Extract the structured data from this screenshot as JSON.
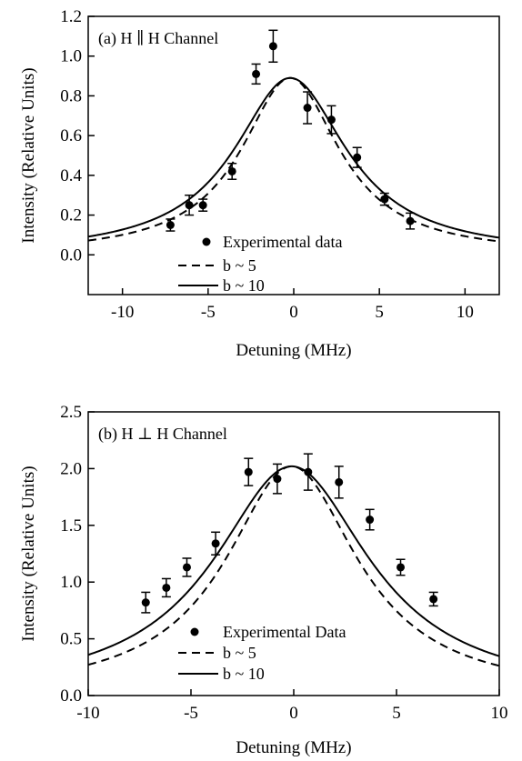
{
  "chart_data": [
    {
      "type": "line",
      "panel_label": "(a) H ∥ H Channel",
      "xlabel": "Detuning (MHz)",
      "ylabel": "Intensity (Relative Units)",
      "xlim": [
        -12,
        12
      ],
      "ylim": [
        -0.2,
        1.2
      ],
      "xticks": [
        -10,
        -5,
        0,
        5,
        10
      ],
      "xtick_labels": [
        "-10",
        "-5",
        "0",
        "5",
        "10"
      ],
      "yticks": [
        0.0,
        0.2,
        0.4,
        0.6,
        0.8,
        1.0,
        1.2
      ],
      "ytick_labels": [
        "0.0",
        "0.2",
        "0.4",
        "0.6",
        "0.8",
        "1.0",
        "1.2"
      ],
      "grid": false,
      "legend_position": "lower-center",
      "series": [
        {
          "name": "Experimental data",
          "kind": "scatter-errorbar",
          "x": [
            -7.2,
            -6.1,
            -5.3,
            -3.6,
            -2.2,
            -1.2,
            0.8,
            2.2,
            3.7,
            5.3,
            6.8
          ],
          "y": [
            0.15,
            0.25,
            0.25,
            0.42,
            0.91,
            1.05,
            0.74,
            0.68,
            0.49,
            0.28,
            0.17
          ],
          "err": [
            0.03,
            0.05,
            0.03,
            0.04,
            0.05,
            0.08,
            0.08,
            0.07,
            0.05,
            0.03,
            0.04
          ]
        },
        {
          "name": "b ~ 5",
          "kind": "lorentzian",
          "style": "dashed",
          "amplitude": 0.89,
          "center": -0.2,
          "hwhm": 3.5
        },
        {
          "name": "b ~ 10",
          "kind": "lorentzian",
          "style": "solid",
          "amplitude": 0.89,
          "center": -0.2,
          "hwhm": 4.0
        }
      ]
    },
    {
      "type": "line",
      "panel_label": "(b) H ⊥ H Channel",
      "xlabel": "Detuning (MHz)",
      "ylabel": "Intensity (Relative Units)",
      "xlim": [
        -10,
        10
      ],
      "ylim": [
        0.0,
        2.5
      ],
      "xticks": [
        -10,
        -5,
        0,
        5,
        10
      ],
      "xtick_labels": [
        "-10",
        "-5",
        "0",
        "5",
        "10"
      ],
      "yticks": [
        0.0,
        0.5,
        1.0,
        1.5,
        2.0,
        2.5
      ],
      "ytick_labels": [
        "0.0",
        "0.5",
        "1.0",
        "1.5",
        "2.0",
        "2.5"
      ],
      "grid": false,
      "legend_position": "lower-center",
      "series": [
        {
          "name": "Experimental Data",
          "kind": "scatter-errorbar",
          "x": [
            -7.2,
            -6.2,
            -5.2,
            -3.8,
            -2.2,
            -0.8,
            0.7,
            2.2,
            3.7,
            5.2,
            6.8
          ],
          "y": [
            0.82,
            0.95,
            1.13,
            1.34,
            1.97,
            1.91,
            1.97,
            1.88,
            1.55,
            1.13,
            0.85
          ],
          "err": [
            0.09,
            0.08,
            0.08,
            0.1,
            0.12,
            0.13,
            0.16,
            0.14,
            0.09,
            0.07,
            0.06
          ]
        },
        {
          "name": "b ~ 5",
          "kind": "lorentzian",
          "style": "dashed",
          "amplitude": 2.02,
          "center": -0.1,
          "hwhm": 3.9
        },
        {
          "name": "b ~ 10",
          "kind": "lorentzian",
          "style": "solid",
          "amplitude": 2.02,
          "center": -0.1,
          "hwhm": 4.6
        }
      ]
    }
  ]
}
